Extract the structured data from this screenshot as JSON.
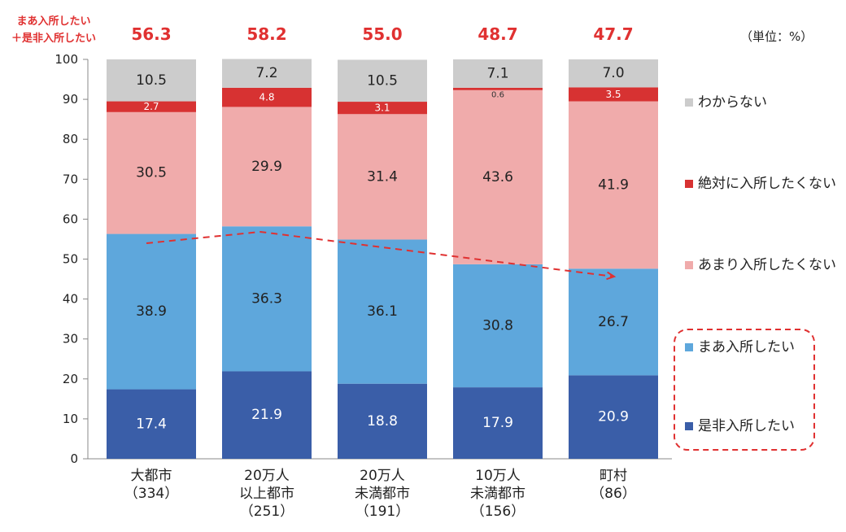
{
  "chart_data": {
    "type": "stacked-bar",
    "unit_label": "（単位：%）",
    "ylim": [
      0,
      100
    ],
    "yticks": [
      0,
      10,
      20,
      30,
      40,
      50,
      60,
      70,
      80,
      90,
      100
    ],
    "categories": [
      [
        "大都市",
        "（334）"
      ],
      [
        "20万人",
        "以上都市",
        "（251）"
      ],
      [
        "20万人",
        "未満都市",
        "（191）"
      ],
      [
        "10万人",
        "未満都市",
        "（156）"
      ],
      [
        "町村",
        "（86）"
      ]
    ],
    "series": [
      {
        "name": "是非入所したい",
        "color": "#3a5ea8",
        "values": [
          17.4,
          21.9,
          18.8,
          17.9,
          20.9
        ],
        "labels": [
          "17.4",
          "21.9",
          "18.8",
          "17.9",
          "20.9"
        ]
      },
      {
        "name": "まあ入所したい",
        "color": "#5ea7dc",
        "values": [
          38.9,
          36.3,
          36.1,
          30.8,
          26.7
        ],
        "labels": [
          "38.9",
          "36.3",
          "36.1",
          "30.8",
          "26.7"
        ]
      },
      {
        "name": "あまり入所したくない",
        "color": "#f0abab",
        "values": [
          30.5,
          29.9,
          31.4,
          43.6,
          41.9
        ],
        "labels": [
          "30.5",
          "29.9",
          "31.4",
          "43.6",
          "41.9"
        ]
      },
      {
        "name": "絶対に入所したくない",
        "color": "#d73232",
        "values": [
          2.7,
          4.8,
          3.1,
          0.6,
          3.5
        ],
        "labels": [
          "2.7",
          "4.8",
          "3.1",
          "0.6",
          "3.5"
        ]
      },
      {
        "name": "わからない",
        "color": "#cccccc",
        "values": [
          10.5,
          7.2,
          10.5,
          7.1,
          7.0
        ],
        "labels": [
          "10.5",
          "7.2",
          "10.5",
          "7.1",
          "7.0"
        ]
      }
    ],
    "combined": {
      "label_lines": [
        "まあ入所したい",
        "＋是非入所したい"
      ],
      "values": [
        56.3,
        58.2,
        55.0,
        48.7,
        47.7
      ],
      "labels": [
        "56.3",
        "58.2",
        "55.0",
        "48.7",
        "47.7"
      ],
      "color": "#e03131"
    },
    "grid": false,
    "legend": "right",
    "trend_arrow": "dashed red arrow through the combined totals, pointing down-right"
  }
}
